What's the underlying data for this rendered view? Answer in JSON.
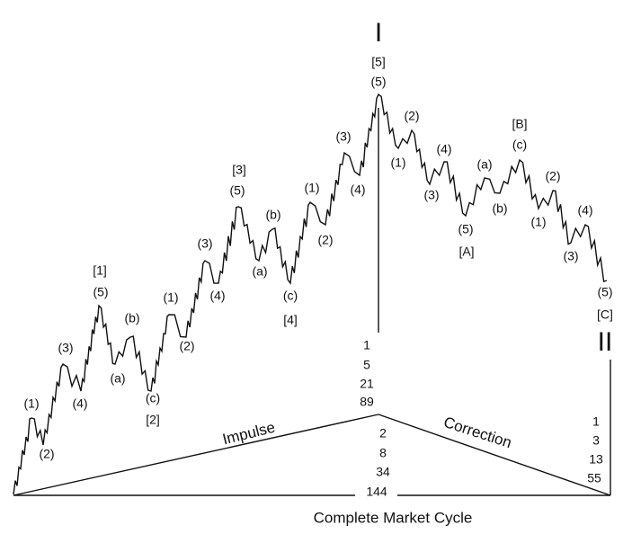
{
  "peak_label": "I",
  "end_label": "II",
  "impulse_labels": [
    "[5]",
    "(5)",
    "(1)",
    "(2)",
    "(3)",
    "(4)",
    "[1]",
    "(5)",
    "(b)",
    "(a)",
    "(c)",
    "[2]",
    "(1)",
    "(2)",
    "(3)",
    "(4)",
    "[3]",
    "(5)",
    "(b)",
    "(a)",
    "(c)",
    "[4]",
    "(1)",
    "(2)",
    "(3)",
    "(4)"
  ],
  "correction_labels": [
    "(2)",
    "(1)",
    "(4)",
    "(3)",
    "(a)",
    "(b)",
    "(5)",
    "[A]",
    "[B]",
    "(c)",
    "(2)",
    "(1)",
    "(4)",
    "(3)",
    "(5)",
    "[C]"
  ],
  "impulse_counts": [
    1,
    5,
    21,
    89
  ],
  "cycle_counts": [
    2,
    8,
    34,
    144
  ],
  "correction_counts": [
    1,
    3,
    13,
    55
  ],
  "impulse_axis": "Impulse",
  "correction_axis": "Correction",
  "caption": "Complete Market Cycle"
}
